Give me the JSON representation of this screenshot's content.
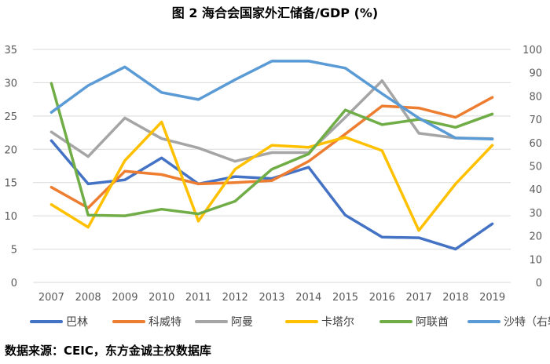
{
  "chart_data": {
    "type": "line",
    "title": "图 2  海合会国家外汇储备/GDP (%)",
    "source": "数据来源：CEIC，东方金诚主权数据库",
    "categories": [
      "2007",
      "2008",
      "2009",
      "2010",
      "2011",
      "2012",
      "2013",
      "2014",
      "2015",
      "2016",
      "2017",
      "2018",
      "2019"
    ],
    "y_left": {
      "min": 0,
      "max": 35,
      "ticks": [
        "0",
        "5",
        "10",
        "15",
        "20",
        "25",
        "30",
        "35"
      ]
    },
    "y_right": {
      "min": 0,
      "max": 100,
      "ticks": [
        "0",
        "10",
        "20",
        "30",
        "40",
        "50",
        "60",
        "70",
        "80",
        "90",
        "100"
      ]
    },
    "series": [
      {
        "name": "巴林",
        "axis": "left",
        "color": "#4472C4",
        "values": [
          21.3,
          14.8,
          15.4,
          18.7,
          14.8,
          15.9,
          15.6,
          17.3,
          10.1,
          6.8,
          6.7,
          5.0,
          8.8
        ]
      },
      {
        "name": "科威特",
        "axis": "left",
        "color": "#ED7D31",
        "values": [
          14.3,
          11.2,
          16.7,
          16.2,
          14.8,
          15.0,
          15.3,
          18.2,
          22.3,
          26.5,
          26.2,
          24.8,
          27.8
        ]
      },
      {
        "name": "阿曼",
        "axis": "left",
        "color": "#A5A5A5",
        "values": [
          22.6,
          18.9,
          24.7,
          21.6,
          20.2,
          18.2,
          19.5,
          19.5,
          24.8,
          30.3,
          22.4,
          21.7,
          21.6
        ]
      },
      {
        "name": "卡塔尔",
        "axis": "left",
        "color": "#FFC000",
        "values": [
          11.7,
          8.3,
          18.3,
          24.1,
          9.2,
          17.0,
          20.6,
          20.3,
          21.8,
          19.8,
          7.8,
          14.8,
          20.6
        ]
      },
      {
        "name": "阿联酋",
        "axis": "left",
        "color": "#70AD47",
        "values": [
          29.9,
          10.1,
          10.0,
          11.0,
          10.3,
          12.2,
          17.0,
          19.3,
          25.9,
          23.7,
          24.5,
          23.3,
          25.3
        ]
      },
      {
        "name": "沙特（右轴）",
        "axis": "right",
        "color": "#5B9BD5",
        "values": [
          73,
          84.5,
          92.5,
          81.5,
          78.5,
          87,
          95,
          95,
          92,
          81,
          70.5,
          62,
          61.5
        ]
      }
    ]
  }
}
